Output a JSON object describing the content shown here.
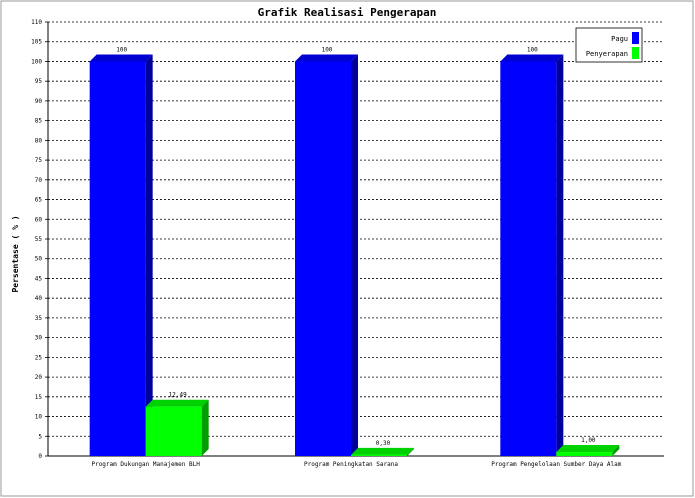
{
  "chart_data": {
    "type": "bar",
    "title": "Grafik Realisasi Pengerapan",
    "ylabel": "Persentase ( % )",
    "xlabel": "",
    "ylim": [
      0,
      110
    ],
    "y_step": 5,
    "grid": true,
    "legend_position": "top-right",
    "categories": [
      "Program Dukungan Manajemen BLH",
      "Program Peningkatan Sarana",
      "Program Pengelolaan Sumber Daya Alam"
    ],
    "series": [
      {
        "name": "Pagu",
        "color": "#0000ff",
        "values": [
          100,
          100,
          100
        ],
        "labels": [
          "100",
          "100",
          "100"
        ]
      },
      {
        "name": "Penyerapan",
        "color": "#00ff00",
        "values": [
          12.49,
          0.3,
          1.0
        ],
        "labels": [
          "12,49",
          "0,30",
          "1,00"
        ]
      }
    ]
  }
}
